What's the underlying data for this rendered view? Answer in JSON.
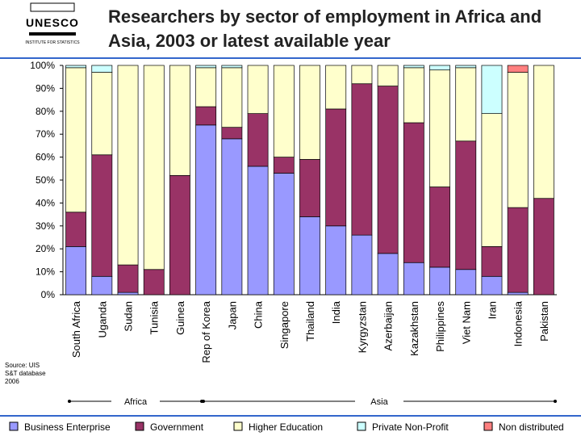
{
  "logo": {
    "name": "UNESCO",
    "subtitle": "INSTITUTE FOR STATISTICS"
  },
  "chart_data": {
    "type": "stacked_bar_100",
    "title": "Researchers by sector of employment in Africa and Asia, 2003 or latest available year",
    "source": "Source: UIS S&T database 2006",
    "categories": [
      "South Africa",
      "Uganda",
      "Sudan",
      "Tunisia",
      "Guinea",
      "Rep of Korea",
      "Japan",
      "China",
      "Singapore",
      "Thailand",
      "India",
      "Kyrgyzstan",
      "Azerbaijan",
      "Kazakhstan",
      "Philippines",
      "Viet Nam",
      "Iran",
      "Indonesia",
      "Pakistan"
    ],
    "regions": [
      "Africa",
      "Asia"
    ],
    "series": [
      {
        "name": "Business Enterprise",
        "color": "#9999ff",
        "values": [
          21,
          8,
          1,
          0,
          0,
          74,
          68,
          56,
          53,
          34,
          30,
          26,
          18,
          14,
          12,
          11,
          8,
          1,
          0
        ]
      },
      {
        "name": "Government",
        "color": "#993366",
        "values": [
          15,
          53,
          12,
          11,
          52,
          8,
          5,
          23,
          7,
          25,
          51,
          66,
          73,
          61,
          35,
          56,
          13,
          37,
          42
        ]
      },
      {
        "name": "Higher Education",
        "color": "#ffffcc",
        "values": [
          63,
          36,
          87,
          89,
          48,
          17,
          26,
          21,
          40,
          41,
          19,
          8,
          9,
          24,
          51,
          32,
          58,
          59,
          58
        ]
      },
      {
        "name": "Private Non-Profit",
        "color": "#ccffff",
        "values": [
          1,
          3,
          0,
          0,
          0,
          1,
          1,
          0,
          0,
          0,
          0,
          0,
          0,
          1,
          2,
          1,
          21,
          0,
          0
        ]
      },
      {
        "name": "Non distributed",
        "color": "#ff8080",
        "values": [
          0,
          0,
          0,
          0,
          0,
          0,
          0,
          0,
          0,
          0,
          0,
          0,
          0,
          0,
          0,
          0,
          0,
          3,
          0
        ]
      }
    ],
    "ylim": [
      0,
      100
    ],
    "yticks": [
      {
        "value": 0,
        "label": "0%"
      },
      {
        "value": 10,
        "label": "10%"
      },
      {
        "value": 20,
        "label": "20%"
      },
      {
        "value": 30,
        "label": "30%"
      },
      {
        "value": 40,
        "label": "40%"
      },
      {
        "value": 50,
        "label": "50%"
      },
      {
        "value": 60,
        "label": "60%"
      },
      {
        "value": 70,
        "label": "70%"
      },
      {
        "value": 80,
        "label": "80%"
      },
      {
        "value": 90,
        "label": "90%"
      },
      {
        "value": 100,
        "label": "100%"
      }
    ],
    "grid": false
  }
}
